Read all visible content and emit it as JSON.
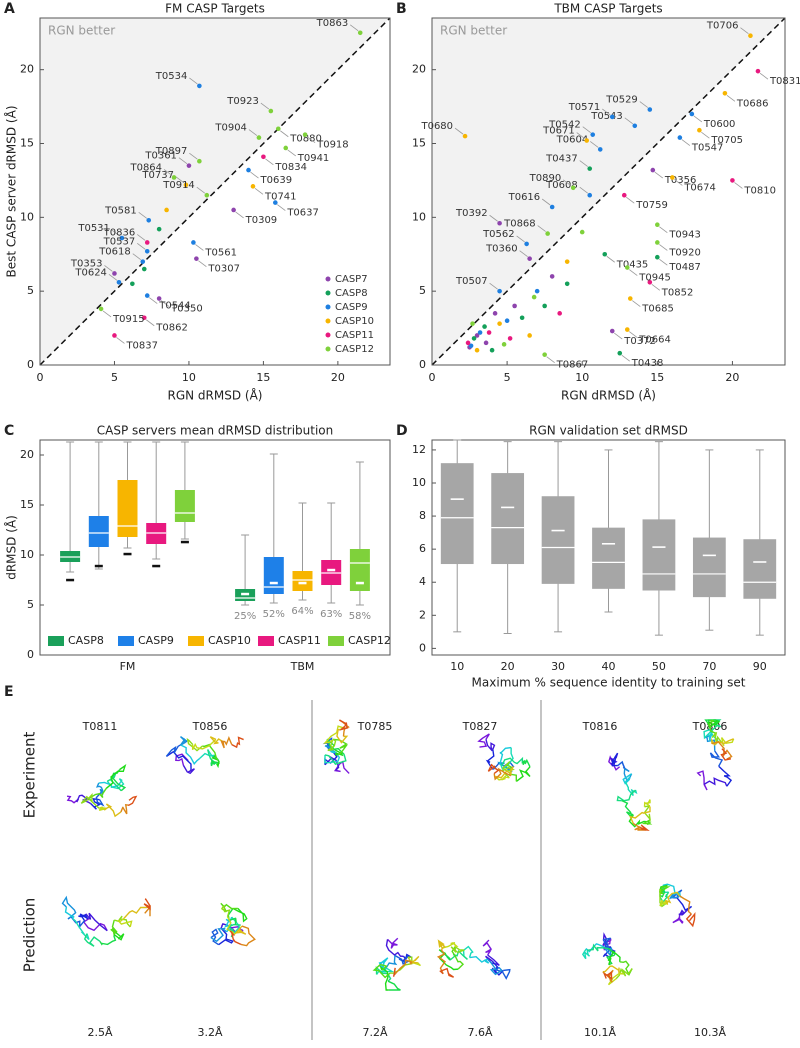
{
  "chart_data": [
    {
      "panel": "A",
      "type": "scatter",
      "title": "FM CASP Targets",
      "xlabel": "RGN dRMSD (Å)",
      "ylabel": "Best CASP server dRMSD (Å)",
      "annotation": "RGN better",
      "diagonal": true,
      "legend": "lower right",
      "xlim": [
        0,
        23.5
      ],
      "ylim": [
        0,
        23.5
      ],
      "xticks": [
        0,
        5,
        10,
        15,
        20
      ],
      "yticks": [
        0,
        5,
        10,
        15,
        20
      ],
      "series": [
        {
          "name": "CASP7",
          "color": "#8e44ad",
          "x": [
            10.5,
            13,
            8,
            5,
            10
          ],
          "values": [
            7.2,
            10.5,
            4.5,
            6.2,
            13.5
          ],
          "labels": [
            "T0307",
            "T0309",
            "T0350",
            "T0353",
            "T0361"
          ]
        },
        {
          "name": "CASP8",
          "color": "#14a05a",
          "x": [
            7,
            8,
            6.2
          ],
          "values": [
            6.5,
            9.2,
            5.5
          ],
          "labels": [
            null,
            null,
            null
          ]
        },
        {
          "name": "CASP9",
          "color": "#1e7fe0",
          "x": [
            5.5,
            10.7,
            7.2,
            7.2,
            10.3,
            7.3,
            6.9,
            5.3,
            15.8,
            14
          ],
          "values": [
            8.6,
            18.9,
            7.7,
            4.7,
            8.3,
            9.8,
            7,
            5.6,
            11,
            13.2
          ],
          "labels": [
            "T0531",
            "T0534",
            "T0537",
            "T0544",
            "T0561",
            "T0581",
            "T0618",
            "T0624",
            "T0637",
            "T0639"
          ]
        },
        {
          "name": "CASP10",
          "color": "#f7b500",
          "x": [
            9.8,
            14.3,
            8.5
          ],
          "values": [
            12.2,
            12.1,
            10.5
          ],
          "labels": [
            "T0737",
            "T0741",
            null
          ]
        },
        {
          "name": "CASP11",
          "color": "#e8197f",
          "x": [
            7.2,
            5,
            15,
            7
          ],
          "values": [
            8.3,
            2,
            14.1,
            3.2
          ],
          "labels": [
            "T0836",
            "T0837",
            "T0834",
            "T0862"
          ]
        },
        {
          "name": "CASP12",
          "color": "#7fd13b",
          "x": [
            21.5,
            9,
            16,
            10.7,
            14.7,
            11.2,
            4.1,
            17.8,
            15.5,
            16.5
          ],
          "values": [
            22.5,
            12.7,
            16,
            13.8,
            15.4,
            11.5,
            3.8,
            15.6,
            17.2,
            14.7
          ],
          "labels": [
            "T0863",
            "T0864",
            "T0880",
            "T0897",
            "T0904",
            "T0914",
            "T0915",
            "T0918",
            "T0923",
            "T0941"
          ]
        }
      ]
    },
    {
      "panel": "B",
      "type": "scatter",
      "title": "TBM CASP Targets",
      "xlabel": "RGN dRMSD (Å)",
      "annotation": "RGN better",
      "diagonal": true,
      "xlim": [
        0,
        23.5
      ],
      "ylim": [
        0,
        23.5
      ],
      "xticks": [
        0,
        5,
        10,
        15,
        20
      ],
      "yticks": [
        0,
        5,
        10,
        15,
        20
      ],
      "series": [
        {
          "color": "#8e44ad",
          "x": [
            6.5,
            14.7,
            12,
            4.5,
            3,
            4.2,
            2.5,
            5.5,
            8,
            3.6
          ],
          "values": [
            7.2,
            13.2,
            2.3,
            9.6,
            2,
            3.5,
            1.2,
            4,
            6,
            1.5
          ],
          "labels": [
            "T0360",
            "T0356",
            "T0372",
            "T0392",
            null,
            null,
            null,
            null,
            null,
            null
          ]
        },
        {
          "color": "#14a05a",
          "x": [
            11.5,
            10.5,
            12.5,
            15,
            2.8,
            3.5,
            6,
            4,
            9,
            7.5
          ],
          "values": [
            7.5,
            13.3,
            0.8,
            7.3,
            1.8,
            2.6,
            3.2,
            1,
            5.5,
            4
          ],
          "labels": [
            "T0435",
            "T0437",
            "T0438",
            "T0487",
            null,
            null,
            null,
            null,
            null,
            null
          ]
        },
        {
          "color": "#1e7fe0",
          "x": [
            4.5,
            14.5,
            10.7,
            13.5,
            16.5,
            6.3,
            12,
            17.3,
            11.2,
            10.5,
            8,
            3.2,
            5,
            2.6,
            7
          ],
          "values": [
            5,
            17.3,
            15.6,
            16.2,
            15.4,
            8.2,
            16.8,
            17,
            14.6,
            11.5,
            10.7,
            2.2,
            3,
            1.3,
            5
          ],
          "labels": [
            "T0507",
            "T0529",
            "T0542",
            "T0543",
            "T0547",
            "T0562",
            "T0571",
            "T0600",
            "T0604",
            "T0608",
            "T0616",
            null,
            null,
            null,
            null
          ]
        },
        {
          "color": "#f7b500",
          "x": [
            13,
            10.3,
            16,
            2.2,
            13.2,
            19.5,
            17.8,
            21.2,
            3,
            4.5,
            6.5,
            9
          ],
          "values": [
            2.4,
            15.2,
            12.7,
            15.5,
            4.5,
            18.4,
            15.9,
            22.3,
            1,
            2.8,
            2,
            7
          ],
          "labels": [
            "T0664",
            "T0671",
            "T0674",
            "T0680",
            "T0685",
            "T0686",
            "T0705",
            "T0706",
            null,
            null,
            null,
            null
          ]
        },
        {
          "color": "#e8197f",
          "x": [
            12.8,
            20,
            21.7,
            14.5,
            2.4,
            3.8,
            5.2,
            8.5
          ],
          "values": [
            11.5,
            12.5,
            19.9,
            5.6,
            1.5,
            2.2,
            1.8,
            3.5
          ],
          "labels": [
            "T0759",
            "T0810",
            "T0831",
            "T0852",
            null,
            null,
            null,
            null
          ]
        },
        {
          "color": "#7fd13b",
          "x": [
            7.5,
            7.7,
            9.4,
            15,
            15,
            13,
            2.7,
            4.8,
            6.8,
            10
          ],
          "values": [
            0.7,
            8.9,
            12,
            8.3,
            9.5,
            6.6,
            2.8,
            1.4,
            4.6,
            9
          ],
          "labels": [
            "T0867",
            "T0868",
            "T0890",
            "T0920",
            "T0943",
            "T0945",
            null,
            null,
            null,
            null
          ]
        }
      ]
    },
    {
      "panel": "C",
      "type": "box",
      "title": "CASP servers mean dRMSD distribution",
      "ylabel": "dRMSD (Å)",
      "legend": "lower left",
      "categories": [
        "FM",
        "TBM"
      ],
      "ylim": [
        0,
        21.5
      ],
      "yticks": [
        0,
        5,
        10,
        15,
        20
      ],
      "series": [
        {
          "name": "CASP8",
          "color": "#1aa05a",
          "boxes": [
            {
              "low": 8.3,
              "q1": 9.3,
              "median": 9.8,
              "q3": 10.4,
              "high": 21.3,
              "mean": 7.5
            },
            {
              "low": 5,
              "q1": 5.4,
              "median": 5.7,
              "q3": 6.6,
              "high": 12,
              "mean": 6.1
            }
          ],
          "percents": [
            null,
            25
          ],
          "percent_labels": [
            null,
            "25%"
          ]
        },
        {
          "name": "CASP9",
          "color": "#1e80e8",
          "boxes": [
            {
              "low": 8.6,
              "q1": 10.8,
              "median": 12.2,
              "q3": 13.9,
              "high": 21.3,
              "mean": 8.9
            },
            {
              "low": 5.2,
              "q1": 6.1,
              "median": 6.8,
              "q3": 9.8,
              "high": 20.1,
              "mean": 7.2
            }
          ],
          "percents": [
            null,
            52
          ],
          "percent_labels": [
            null,
            "52%"
          ]
        },
        {
          "name": "CASP10",
          "color": "#f7b500",
          "boxes": [
            {
              "low": 10.7,
              "q1": 11.8,
              "median": 12.9,
              "q3": 17.5,
              "high": 21.3,
              "mean": 10.1
            },
            {
              "low": 5.5,
              "q1": 6.4,
              "median": 7.5,
              "q3": 8.4,
              "high": 15.2,
              "mean": 7.2
            }
          ],
          "percents": [
            null,
            64
          ],
          "percent_labels": [
            null,
            "64%"
          ]
        },
        {
          "name": "CASP11",
          "color": "#e8197f",
          "boxes": [
            {
              "low": 9.6,
              "q1": 11.1,
              "median": 12.2,
              "q3": 13.2,
              "high": 21.3,
              "mean": 8.9
            },
            {
              "low": 5.2,
              "q1": 7,
              "median": 8.2,
              "q3": 9.5,
              "high": 15.2,
              "mean": 8.5
            }
          ],
          "percents": [
            null,
            63
          ],
          "percent_labels": [
            null,
            "63%"
          ]
        },
        {
          "name": "CASP12",
          "color": "#7fd13b",
          "boxes": [
            {
              "low": 11.6,
              "q1": 13.3,
              "median": 14.2,
              "q3": 16.5,
              "high": 21.3,
              "mean": 11.3
            },
            {
              "low": 5,
              "q1": 6.4,
              "median": 9.2,
              "q3": 10.6,
              "high": 19.3,
              "mean": 7.2
            }
          ],
          "percents": [
            null,
            58
          ],
          "percent_labels": [
            null,
            "58%"
          ]
        }
      ]
    },
    {
      "panel": "D",
      "type": "box",
      "title": "RGN validation set dRMSD",
      "xlabel": "Maximum % sequence identity to training set",
      "categories": [
        10,
        20,
        30,
        40,
        50,
        70,
        90
      ],
      "ylim": [
        -0.4,
        12.6
      ],
      "yticks": [
        0,
        2,
        4,
        6,
        8,
        10,
        12
      ],
      "series": [
        {
          "color": "#a6a6a6",
          "boxes": [
            {
              "low": 1,
              "q1": 5.1,
              "median": 7.9,
              "q3": 11.2,
              "high": 12.6,
              "mean": 9
            },
            {
              "low": 0.9,
              "q1": 5.1,
              "median": 7.3,
              "q3": 10.6,
              "high": 12.5,
              "mean": 8.5
            },
            {
              "low": 1,
              "q1": 3.9,
              "median": 6.1,
              "q3": 9.2,
              "high": 12.5,
              "mean": 7.1
            },
            {
              "low": 2.2,
              "q1": 3.6,
              "median": 5.2,
              "q3": 7.3,
              "high": 12,
              "mean": 6.3
            },
            {
              "low": 0.8,
              "q1": 3.5,
              "median": 4.5,
              "q3": 7.8,
              "high": 12.5,
              "mean": 6.1
            },
            {
              "low": 1.1,
              "q1": 3.1,
              "median": 4.5,
              "q3": 6.7,
              "high": 12,
              "mean": 5.6
            },
            {
              "low": 0.8,
              "q1": 3,
              "median": 4,
              "q3": 6.6,
              "high": 12,
              "mean": 5.2
            }
          ]
        }
      ]
    }
  ],
  "panel_e": {
    "letter": "E",
    "row_labels": [
      "Experiment",
      "Prediction"
    ],
    "targets": [
      {
        "name": "T0811",
        "rmsd": "2.5Å"
      },
      {
        "name": "T0856",
        "rmsd": "3.2Å"
      },
      {
        "name": "T0785",
        "rmsd": "7.2Å"
      },
      {
        "name": "T0827",
        "rmsd": "7.6Å"
      },
      {
        "name": "T0816",
        "rmsd": "10.1Å"
      },
      {
        "name": "T0806",
        "rmsd": "10.3Å"
      }
    ]
  }
}
